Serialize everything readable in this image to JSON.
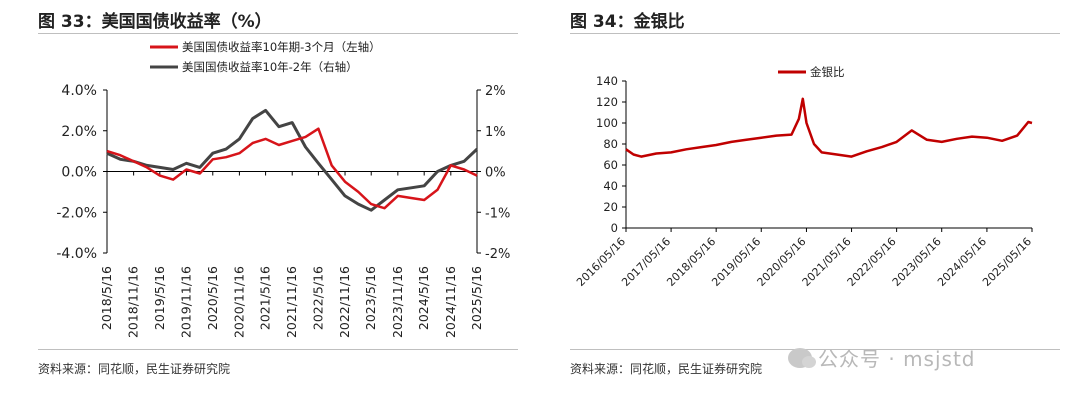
{
  "left_panel": {
    "title": "图 33：美国国债收益率（%）",
    "source": "资料来源：同花顺，民生证券研究院"
  },
  "right_panel": {
    "title": "图 34：金银比",
    "source": "资料来源：同花顺，民生证券研究院"
  },
  "watermark": {
    "text": "公众号 · msjstd",
    "icon": "wechat-icon"
  },
  "chart_data": [
    {
      "type": "line",
      "x_tick_labels": [
        "2018/5/16",
        "2018/11/16",
        "2019/5/16",
        "2019/11/16",
        "2020/5/16",
        "2020/11/16",
        "2021/5/16",
        "2021/11/16",
        "2022/5/16",
        "2022/11/16",
        "2023/5/16",
        "2023/11/16",
        "2024/5/16",
        "2024/11/16",
        "2025/5/16"
      ],
      "y_left_ticks": [
        "4.0%",
        "2.0%",
        "0.0%",
        "-2.0%",
        "-4.0%"
      ],
      "y_right_ticks": [
        "2%",
        "1%",
        "0%",
        "-1%",
        "-2%"
      ],
      "ylim_left": [
        -4,
        4
      ],
      "ylim_right": [
        -2,
        2
      ],
      "grid": false,
      "legend_position": "top-center",
      "series": [
        {
          "name": "美国国债收益率10年期-3个月（左轴）",
          "axis": "left",
          "color": "#d7141a",
          "x": [
            "2018/5/16",
            "2018/8/16",
            "2018/11/16",
            "2019/2/16",
            "2019/5/16",
            "2019/8/16",
            "2019/11/16",
            "2020/2/16",
            "2020/5/16",
            "2020/8/16",
            "2020/11/16",
            "2021/2/16",
            "2021/5/16",
            "2021/8/16",
            "2021/11/16",
            "2022/2/16",
            "2022/5/16",
            "2022/8/16",
            "2022/11/16",
            "2023/2/16",
            "2023/5/16",
            "2023/8/16",
            "2023/11/16",
            "2024/2/16",
            "2024/5/16",
            "2024/8/16",
            "2024/11/16",
            "2025/2/16",
            "2025/5/16"
          ],
          "values": [
            1.0,
            0.8,
            0.5,
            0.2,
            -0.2,
            -0.4,
            0.1,
            -0.1,
            0.6,
            0.7,
            0.9,
            1.4,
            1.6,
            1.3,
            1.5,
            1.7,
            2.1,
            0.3,
            -0.5,
            -1.0,
            -1.6,
            -1.8,
            -1.2,
            -1.3,
            -1.4,
            -0.9,
            0.3,
            0.1,
            -0.2
          ]
        },
        {
          "name": "美国国债收益率10年-2年（右轴）",
          "axis": "right",
          "color": "#444444",
          "x": [
            "2018/5/16",
            "2018/8/16",
            "2018/11/16",
            "2019/2/16",
            "2019/5/16",
            "2019/8/16",
            "2019/11/16",
            "2020/2/16",
            "2020/5/16",
            "2020/8/16",
            "2020/11/16",
            "2021/2/16",
            "2021/5/16",
            "2021/8/16",
            "2021/11/16",
            "2022/2/16",
            "2022/5/16",
            "2022/8/16",
            "2022/11/16",
            "2023/2/16",
            "2023/5/16",
            "2023/8/16",
            "2023/11/16",
            "2024/2/16",
            "2024/5/16",
            "2024/8/16",
            "2024/11/16",
            "2025/2/16",
            "2025/5/16"
          ],
          "values": [
            0.45,
            0.3,
            0.25,
            0.15,
            0.1,
            0.05,
            0.2,
            0.1,
            0.45,
            0.55,
            0.8,
            1.3,
            1.5,
            1.1,
            1.2,
            0.6,
            0.2,
            -0.2,
            -0.6,
            -0.8,
            -0.95,
            -0.7,
            -0.45,
            -0.4,
            -0.35,
            0.0,
            0.15,
            0.25,
            0.55
          ]
        }
      ]
    },
    {
      "type": "line",
      "x_tick_labels": [
        "2016/05/16",
        "2017/05/16",
        "2018/05/16",
        "2019/05/16",
        "2020/05/16",
        "2021/05/16",
        "2022/05/16",
        "2023/05/16",
        "2024/05/16",
        "2025/05/16"
      ],
      "y_ticks": [
        "140",
        "120",
        "100",
        "80",
        "60",
        "40",
        "20",
        "0"
      ],
      "ylim": [
        0,
        140
      ],
      "grid": false,
      "legend_position": "top-center",
      "series": [
        {
          "name": "金银比",
          "color": "#c00000",
          "x": [
            "2016/05/16",
            "2016/07/16",
            "2016/09/16",
            "2017/01/16",
            "2017/05/16",
            "2017/09/16",
            "2018/01/16",
            "2018/05/16",
            "2018/09/16",
            "2019/01/16",
            "2019/05/16",
            "2019/09/16",
            "2020/01/16",
            "2020/03/16",
            "2020/04/16",
            "2020/05/16",
            "2020/07/16",
            "2020/09/16",
            "2021/01/16",
            "2021/05/16",
            "2021/09/16",
            "2022/01/16",
            "2022/05/16",
            "2022/09/16",
            "2023/01/16",
            "2023/05/16",
            "2023/09/16",
            "2024/01/16",
            "2024/05/16",
            "2024/09/16",
            "2025/01/16",
            "2025/04/16",
            "2025/05/16"
          ],
          "values": [
            75,
            70,
            68,
            71,
            72,
            75,
            77,
            79,
            82,
            84,
            86,
            88,
            89,
            104,
            123,
            100,
            80,
            72,
            70,
            68,
            73,
            77,
            82,
            93,
            84,
            82,
            85,
            87,
            86,
            83,
            88,
            101,
            100
          ]
        }
      ]
    }
  ]
}
